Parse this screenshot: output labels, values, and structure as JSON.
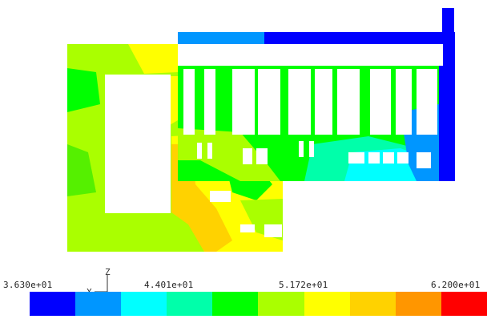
{
  "legend": {
    "labels": [
      "3.630e+01",
      "4.401e+01",
      "5.172e+01",
      "6.200e+01"
    ],
    "colors": [
      "#0000ff",
      "#0096ff",
      "#00ffff",
      "#00ffaa",
      "#00ff00",
      "#aaff00",
      "#ffff00",
      "#ffd200",
      "#ff9600",
      "#ff0000"
    ]
  },
  "axis_triad": {
    "vertical": "Z",
    "horizontal": "X"
  },
  "palette": {
    "blue": "#0000ff",
    "azure": "#0096ff",
    "cyan": "#00ffff",
    "spring": "#00ffaa",
    "green": "#00ff00",
    "lime": "#aaff00",
    "yellow": "#ffff00",
    "amber": "#ffd200",
    "orange": "#ff9600"
  }
}
